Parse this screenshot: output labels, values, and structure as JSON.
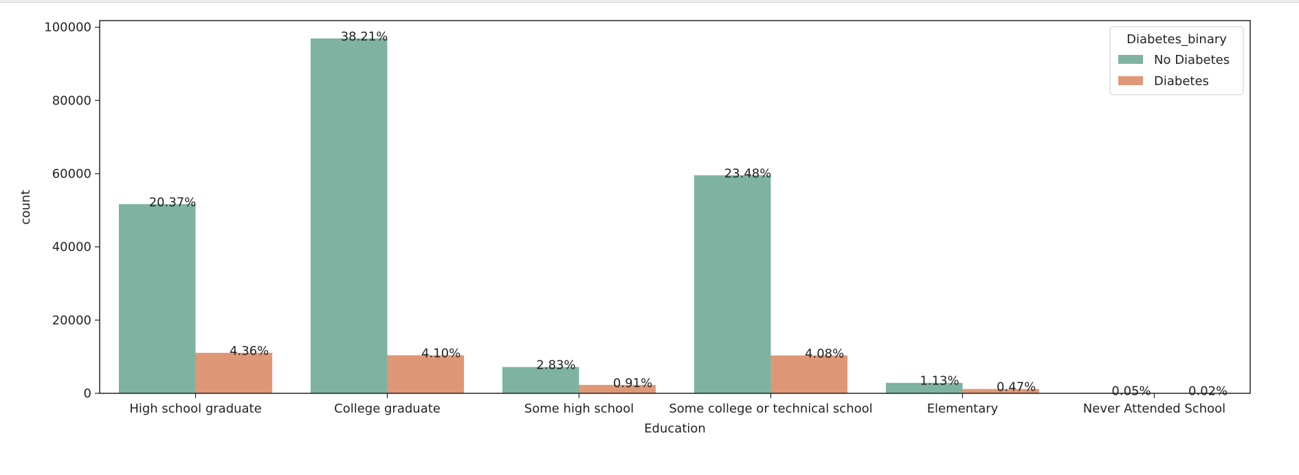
{
  "chart_data": {
    "type": "bar",
    "categories": [
      "High school graduate",
      "College graduate",
      "Some high school",
      "Some college or technical school",
      "Elementary",
      "Never Attended School"
    ],
    "series": [
      {
        "name": "No Diabetes",
        "color": "#7fb3a1",
        "values": [
          51684,
          96925,
          7182,
          59556,
          2860,
          127
        ],
        "labels": [
          "20.37%",
          "38.21%",
          "2.83%",
          "23.48%",
          "1.13%",
          "0.05%"
        ]
      },
      {
        "name": "Diabetes",
        "color": "#df9877",
        "values": [
          11066,
          10400,
          2296,
          10354,
          1183,
          47
        ],
        "labels": [
          "4.36%",
          "4.10%",
          "0.91%",
          "4.08%",
          "0.47%",
          "0.02%"
        ]
      }
    ],
    "xlabel": "Education",
    "ylabel": "count",
    "ylim": [
      0,
      101800
    ],
    "yticks": [
      0,
      20000,
      40000,
      60000,
      80000,
      100000
    ],
    "legend": {
      "title": "Diabetes_binary",
      "position": "top-right"
    }
  }
}
